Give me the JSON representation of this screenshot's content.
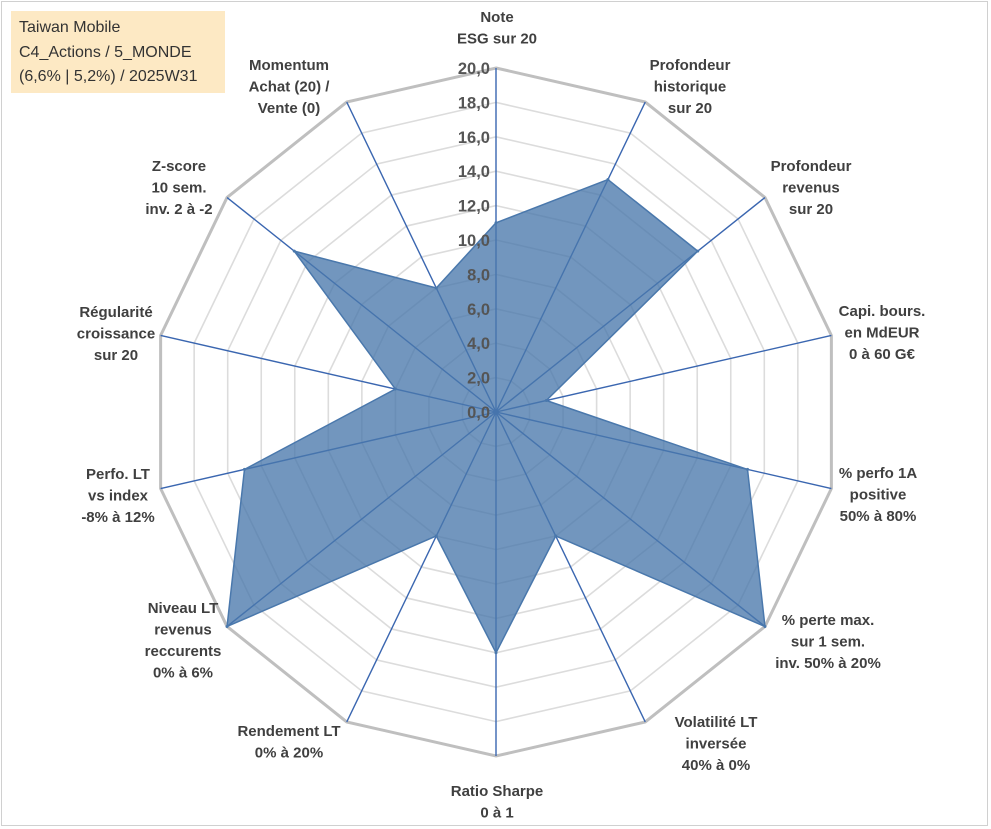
{
  "info_box": {
    "line1": "Taiwan Mobile",
    "line2": "C4_Actions / 5_MONDE",
    "line3": "(6,6% | 5,2%) / 2025W31"
  },
  "chart_data": {
    "type": "radar",
    "title": "",
    "r_range": [
      0,
      20
    ],
    "r_step": 2,
    "tick_labels": [
      "0,0",
      "2,0",
      "4,0",
      "6,0",
      "8,0",
      "10,0",
      "12,0",
      "14,0",
      "16,0",
      "18,0",
      "20,0"
    ],
    "grid": true,
    "colors": {
      "series_fill": "#4a78ac",
      "series_stroke": "#4a78ac",
      "axis_line": "#3a66b0",
      "grid_major": "#bfbfbf",
      "grid_minor": "#dcdcdc"
    },
    "axes": [
      {
        "label": [
          "Note",
          "ESG sur 20"
        ],
        "value": 11.0
      },
      {
        "label": [
          "Profondeur",
          "historique",
          "sur 20"
        ],
        "value": 15.0
      },
      {
        "label": [
          "Profondeur",
          "revenus",
          "sur 20"
        ],
        "value": 15.0
      },
      {
        "label": [
          "Capi. bours.",
          "en MdEUR",
          "0 à 60 G€"
        ],
        "value": 3.0
      },
      {
        "label": [
          "% perfo 1A",
          "positive",
          "50% à 80%"
        ],
        "value": 15.0
      },
      {
        "label": [
          "% perte max.",
          "sur 1 sem.",
          "inv. 50% à 20%"
        ],
        "value": 20.0
      },
      {
        "label": [
          "Volatilité LT",
          "inversée",
          "40% à 0%"
        ],
        "value": 8.0
      },
      {
        "label": [
          "Ratio Sharpe",
          "0 à 1"
        ],
        "value": 14.0
      },
      {
        "label": [
          "Rendement LT",
          "0% à 20%"
        ],
        "value": 8.0
      },
      {
        "label": [
          "Niveau LT",
          "revenus",
          "reccurents",
          "0% à 6%"
        ],
        "value": 20.0
      },
      {
        "label": [
          "Perfo. LT",
          "vs index",
          "-8% à 12%"
        ],
        "value": 15.0
      },
      {
        "label": [
          "Régularité",
          "croissance",
          "sur 20"
        ],
        "value": 6.0
      },
      {
        "label": [
          "Z-score",
          "10 sem.",
          "inv. 2 à -2"
        ],
        "value": 15.0
      },
      {
        "label": [
          "Momentum",
          "Achat (20) /",
          "Vente (0)"
        ],
        "value": 8.0
      }
    ]
  }
}
